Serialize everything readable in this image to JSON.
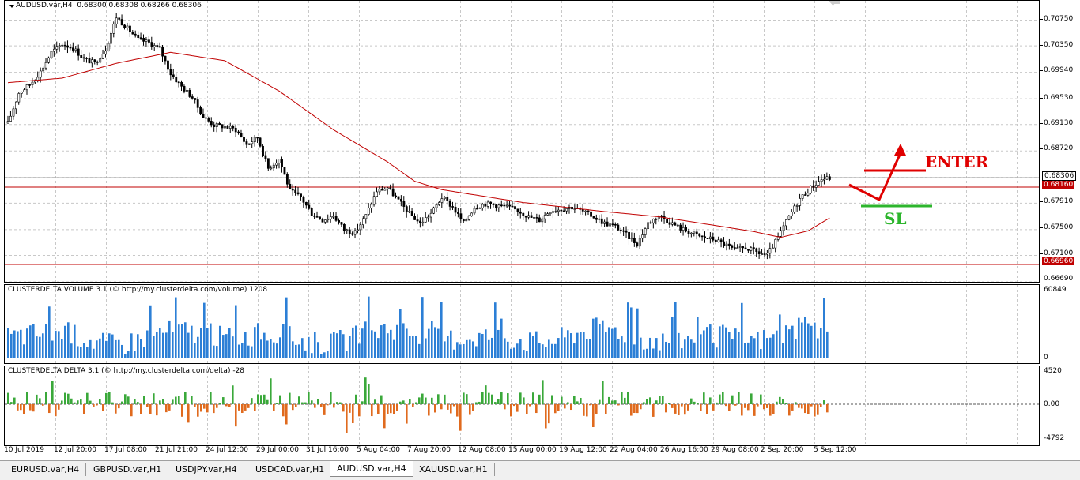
{
  "colors": {
    "grid": "#c8c8c8",
    "candle": "#000000",
    "ma": "#c00000",
    "hline": "#c00000",
    "volume_bar": "#2c7fd6",
    "delta_up": "#3aa83a",
    "delta_down": "#e06a1e",
    "enter": "#e00000",
    "sl": "#2db52d",
    "price_tag_bg": "#c00000",
    "current_tag_bg": "#ffffff"
  },
  "main_pane": {
    "title": "AUDUSD.var,H4",
    "ohlc": "0.68300 0.68308 0.68266 0.68306",
    "y_ticks": [
      "0.70750",
      "0.70350",
      "0.69940",
      "0.69530",
      "0.69130",
      "0.68720",
      "0.68310",
      "0.67910",
      "0.67500",
      "0.67100",
      "0.66690"
    ],
    "current_price_tag": "0.68306",
    "resistance_tag": "0.68160",
    "support_tag": "0.66960"
  },
  "volume_pane": {
    "title": "CLUSTERDELTA VOLUME 3.1 (© http://my.clusterdelta.com/volume) 1208",
    "y_max_label": "60849",
    "y_min_label": "0"
  },
  "delta_pane": {
    "title": "CLUSTERDELTA DELTA 3.1 (© http://my.clusterdelta.com/delta) -28",
    "y_max_label": "4520",
    "y_zero_label": "0.00",
    "y_min_label": "-4792"
  },
  "annotations": {
    "enter_label": "ENTER",
    "sl_label": "SL"
  },
  "x_labels": [
    "10 Jul 2019",
    "12 Jul 20:00",
    "17 Jul 08:00",
    "21 Jul 21:00",
    "24 Jul 12:00",
    "29 Jul 00:00",
    "31 Jul 16:00",
    "5 Aug 04:00",
    "7 Aug 20:00",
    "12 Aug 08:00",
    "15 Aug 00:00",
    "19 Aug 12:00",
    "22 Aug 04:00",
    "26 Aug 16:00",
    "29 Aug 08:00",
    "2 Sep 20:00",
    "5 Sep 12:00"
  ],
  "tabs": [
    {
      "label": "EURUSD.var,H4",
      "active": false
    },
    {
      "label": "GBPUSD.var,H1",
      "active": false
    },
    {
      "label": "USDJPY.var,H4",
      "active": false
    },
    {
      "label": "USDCAD.var,H1",
      "active": false
    },
    {
      "label": "AUDUSD.var,H4",
      "active": true
    },
    {
      "label": "XAUUSD.var,H1",
      "active": false
    }
  ],
  "chart_data": {
    "type": "candlestick",
    "symbol": "AUDUSD.var",
    "timeframe": "H4",
    "ylim": [
      0.6669,
      0.7105
    ],
    "horizontal_lines": [
      0.6816,
      0.6696
    ],
    "close_path": [
      [
        0,
        0.6915
      ],
      [
        4,
        0.6962
      ],
      [
        8,
        0.6975
      ],
      [
        12,
        0.6995
      ],
      [
        16,
        0.7025
      ],
      [
        20,
        0.7038
      ],
      [
        24,
        0.7032
      ],
      [
        28,
        0.7015
      ],
      [
        32,
        0.7008
      ],
      [
        36,
        0.703
      ],
      [
        40,
        0.708
      ],
      [
        44,
        0.7062
      ],
      [
        48,
        0.7045
      ],
      [
        52,
        0.704
      ],
      [
        56,
        0.703
      ],
      [
        60,
        0.6992
      ],
      [
        64,
        0.6972
      ],
      [
        68,
        0.6955
      ],
      [
        72,
        0.6925
      ],
      [
        76,
        0.6912
      ],
      [
        80,
        0.691
      ],
      [
        84,
        0.6905
      ],
      [
        88,
        0.6882
      ],
      [
        92,
        0.6893
      ],
      [
        96,
        0.6845
      ],
      [
        100,
        0.686
      ],
      [
        104,
        0.681
      ],
      [
        108,
        0.68
      ],
      [
        112,
        0.6775
      ],
      [
        116,
        0.6765
      ],
      [
        120,
        0.6772
      ],
      [
        124,
        0.675
      ],
      [
        128,
        0.6745
      ],
      [
        132,
        0.6772
      ],
      [
        136,
        0.681
      ],
      [
        140,
        0.6815
      ],
      [
        144,
        0.6795
      ],
      [
        148,
        0.6775
      ],
      [
        152,
        0.676
      ],
      [
        156,
        0.6775
      ],
      [
        160,
        0.68
      ],
      [
        164,
        0.6785
      ],
      [
        168,
        0.676
      ],
      [
        172,
        0.6785
      ],
      [
        176,
        0.679
      ],
      [
        180,
        0.6788
      ],
      [
        184,
        0.6785
      ],
      [
        188,
        0.678
      ],
      [
        192,
        0.677
      ],
      [
        196,
        0.6765
      ],
      [
        200,
        0.678
      ],
      [
        204,
        0.6782
      ],
      [
        208,
        0.6785
      ],
      [
        212,
        0.6778
      ],
      [
        216,
        0.677
      ],
      [
        220,
        0.676
      ],
      [
        224,
        0.6755
      ],
      [
        228,
        0.6742
      ],
      [
        232,
        0.6728
      ],
      [
        236,
        0.676
      ],
      [
        240,
        0.6772
      ],
      [
        244,
        0.6762
      ],
      [
        248,
        0.6752
      ],
      [
        252,
        0.6745
      ],
      [
        256,
        0.6738
      ],
      [
        260,
        0.6735
      ],
      [
        264,
        0.6728
      ],
      [
        268,
        0.6718
      ],
      [
        272,
        0.6722
      ],
      [
        276,
        0.6715
      ],
      [
        280,
        0.671
      ],
      [
        284,
        0.6738
      ],
      [
        288,
        0.677
      ],
      [
        292,
        0.6798
      ],
      [
        296,
        0.6815
      ],
      [
        300,
        0.6828
      ],
      [
        303,
        0.683
      ]
    ],
    "ma_path": [
      [
        0,
        0.6978
      ],
      [
        20,
        0.6985
      ],
      [
        40,
        0.7008
      ],
      [
        60,
        0.7025
      ],
      [
        80,
        0.7012
      ],
      [
        100,
        0.6965
      ],
      [
        120,
        0.6905
      ],
      [
        140,
        0.6855
      ],
      [
        150,
        0.6825
      ],
      [
        160,
        0.6812
      ],
      [
        175,
        0.6802
      ],
      [
        190,
        0.6792
      ],
      [
        205,
        0.6785
      ],
      [
        220,
        0.6778
      ],
      [
        240,
        0.677
      ],
      [
        260,
        0.6757
      ],
      [
        275,
        0.6747
      ],
      [
        285,
        0.6738
      ],
      [
        295,
        0.6748
      ],
      [
        303,
        0.6768
      ]
    ],
    "bar_count": 304
  }
}
